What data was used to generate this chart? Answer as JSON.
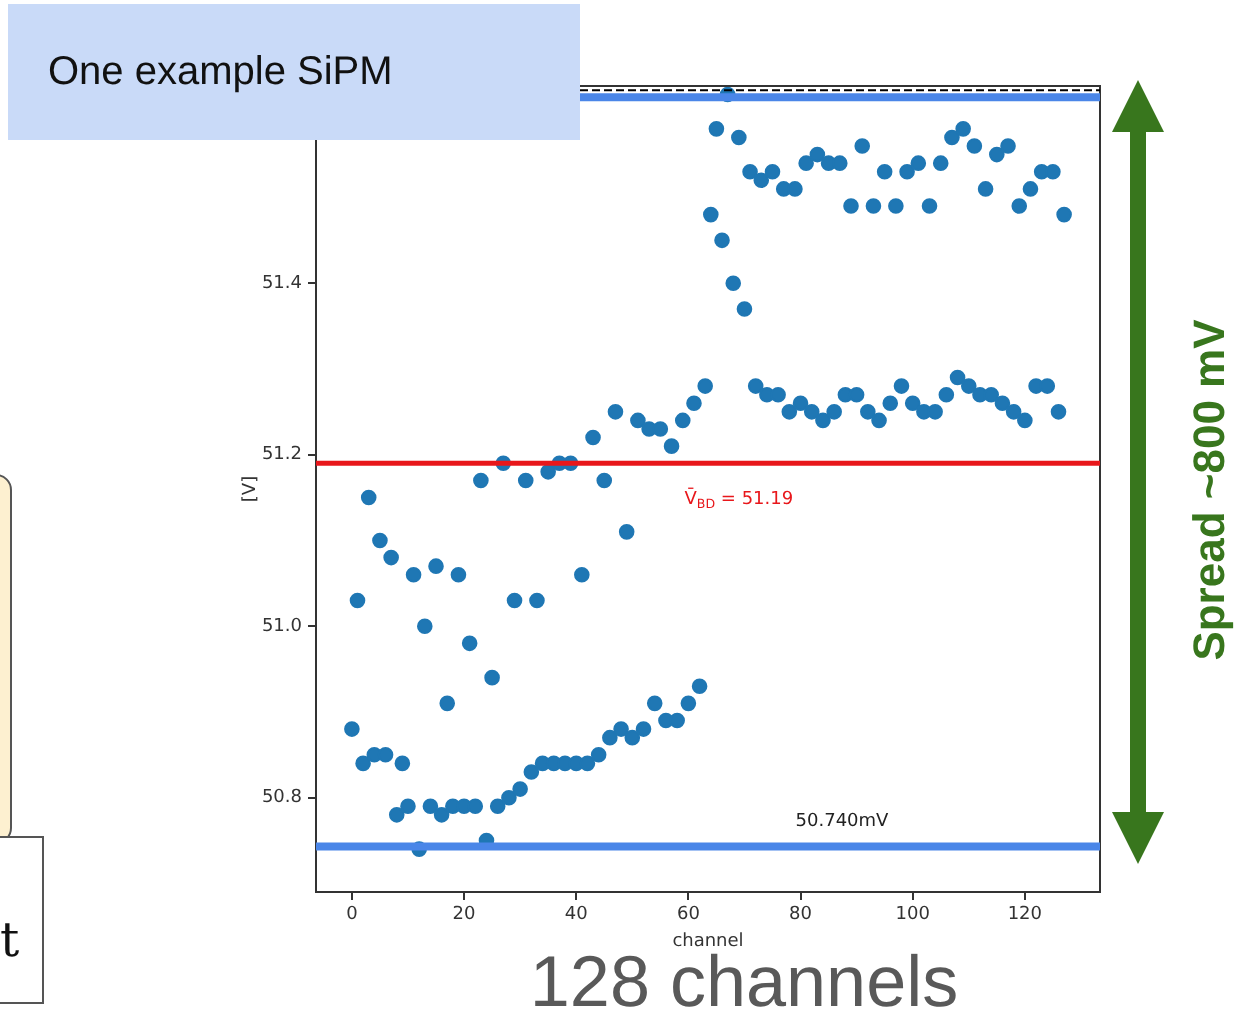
{
  "chart_data": {
    "type": "scatter",
    "title": "One example SiPM",
    "xlabel": "channel",
    "ylabel": "[V]",
    "x": [
      0,
      1,
      2,
      3,
      4,
      5,
      6,
      7,
      8,
      9,
      10,
      11,
      12,
      13,
      14,
      15,
      16,
      17,
      18,
      19,
      20,
      21,
      22,
      23,
      24,
      25,
      26,
      27,
      28,
      29,
      30,
      31,
      32,
      33,
      34,
      35,
      36,
      37,
      38,
      39,
      40,
      41,
      42,
      43,
      44,
      45,
      46,
      47,
      48,
      49,
      50,
      51,
      52,
      53,
      54,
      55,
      56,
      57,
      58,
      59,
      60,
      61,
      62,
      63,
      64,
      65,
      66,
      67,
      68,
      69,
      70,
      71,
      72,
      73,
      74,
      75,
      76,
      77,
      78,
      79,
      80,
      81,
      82,
      83,
      84,
      85,
      86,
      87,
      88,
      89,
      90,
      91,
      92,
      93,
      94,
      95,
      96,
      97,
      98,
      99,
      100,
      101,
      102,
      103,
      104,
      105,
      106,
      107,
      108,
      109,
      110,
      111,
      112,
      113,
      114,
      115,
      116,
      117,
      118,
      119,
      120,
      121,
      122,
      123,
      124,
      125,
      126,
      127
    ],
    "values": [
      50.88,
      51.03,
      50.84,
      51.15,
      50.85,
      51.1,
      50.85,
      51.08,
      50.78,
      50.84,
      50.79,
      51.06,
      50.74,
      51.0,
      50.79,
      51.07,
      50.78,
      50.91,
      50.79,
      51.06,
      50.79,
      50.98,
      50.79,
      51.17,
      50.75,
      50.94,
      50.79,
      51.19,
      50.8,
      51.03,
      50.81,
      51.17,
      50.83,
      51.03,
      50.84,
      51.18,
      50.84,
      51.19,
      50.84,
      51.19,
      50.84,
      51.06,
      50.84,
      51.22,
      50.85,
      51.17,
      50.87,
      51.25,
      50.88,
      51.11,
      50.87,
      51.24,
      50.88,
      51.23,
      50.91,
      51.23,
      50.89,
      51.21,
      50.89,
      51.24,
      50.91,
      51.26,
      50.93,
      51.28,
      51.48,
      51.58,
      51.45,
      51.62,
      51.4,
      51.57,
      51.37,
      51.53,
      51.28,
      51.52,
      51.27,
      51.53,
      51.27,
      51.51,
      51.25,
      51.51,
      51.26,
      51.54,
      51.25,
      51.55,
      51.24,
      51.54,
      51.25,
      51.54,
      51.27,
      51.49,
      51.27,
      51.56,
      51.25,
      51.49,
      51.24,
      51.53,
      51.26,
      51.49,
      51.28,
      51.53,
      51.26,
      51.54,
      51.25,
      51.49,
      51.25,
      51.54,
      51.27,
      51.57,
      51.29,
      51.58,
      51.28,
      51.56,
      51.27,
      51.51,
      51.27,
      51.55,
      51.26,
      51.56,
      51.25,
      51.49,
      51.24,
      51.51,
      51.28,
      51.53,
      51.28,
      51.53,
      51.25,
      51.48
    ],
    "color": "#1f77b4",
    "marker": "circle",
    "xlim": [
      -6.4,
      133.4
    ],
    "xticks": [
      0,
      20,
      40,
      60,
      80,
      100,
      120
    ],
    "ylim": [
      50.69,
      51.63
    ],
    "yticks": [
      {
        "value": 50.8,
        "label": "50.8"
      },
      {
        "value": 51.0,
        "label": "51.0"
      },
      {
        "value": 51.2,
        "label": "51.2"
      },
      {
        "value": 51.4,
        "label": "51.4"
      }
    ],
    "ref_lines": [
      {
        "axis": "y",
        "value": 51.19,
        "label": "V̄$_{BD}$ = 51.19",
        "color": "#e8171b"
      },
      {
        "axis": "y",
        "value": 51.625,
        "color": "#000000",
        "line_style": "dashed"
      },
      {
        "axis": "y",
        "value": 51.617,
        "color": "#4a86e8"
      },
      {
        "axis": "y",
        "value": 50.743,
        "color": "#4a86e8"
      }
    ],
    "annotations": [
      "Spread ~800 mV",
      "128 channels",
      "t",
      "50.740mV"
    ]
  }
}
